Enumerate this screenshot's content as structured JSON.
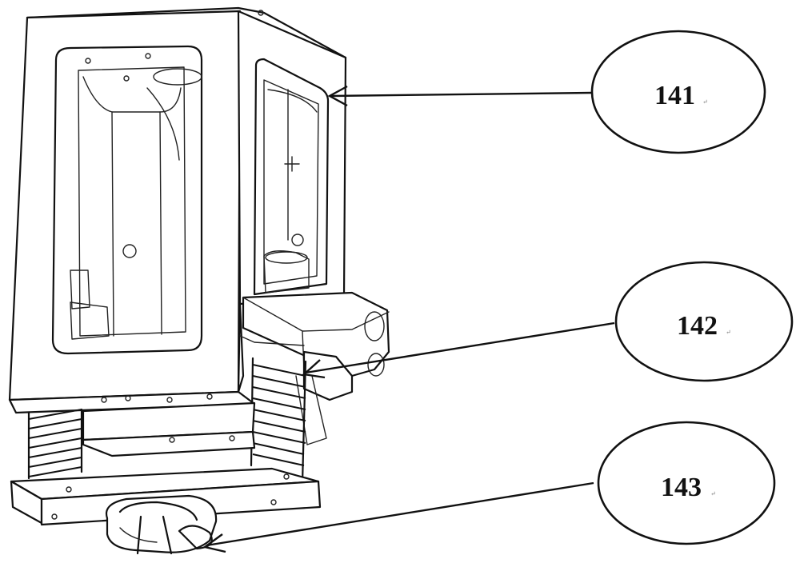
{
  "figure": {
    "callouts": [
      {
        "id": "c141",
        "number": "141",
        "mark": "↵"
      },
      {
        "id": "c142",
        "number": "142",
        "mark": "↵"
      },
      {
        "id": "c143",
        "number": "143",
        "mark": "↵"
      }
    ]
  },
  "colors": {
    "line": "#111111",
    "background": "#ffffff"
  }
}
